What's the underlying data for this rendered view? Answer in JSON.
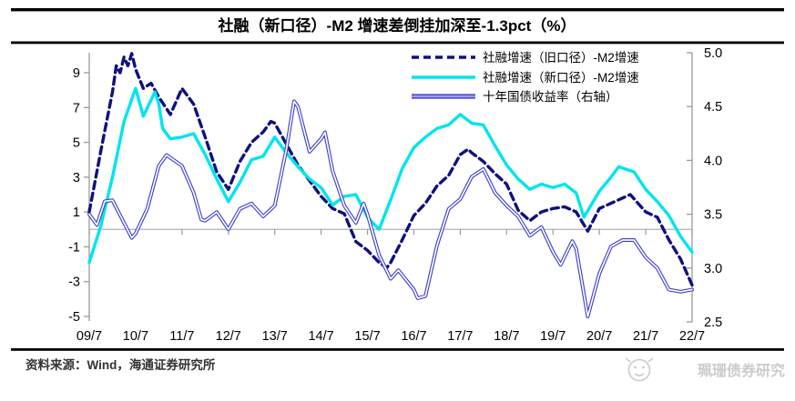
{
  "header": {
    "title": "社融（新口径）-M2 增速差倒挂加深至-1.3pct（%）"
  },
  "footer": {
    "source_label": "资料来源：Wind，海通证券研究所",
    "watermark": "珮珊债券研究"
  },
  "colors": {
    "accent_navy": "#10107e",
    "accent_cyan": "#00e4f0",
    "yield_outer": "#3b3bd0",
    "yield_inner": "#9a9af0",
    "rule_black": "#000000",
    "axis_gray": "#9a9a9a",
    "grid_gray": "#b3b3b3",
    "watermark_gray": "#cccccc"
  },
  "chart_data": {
    "type": "line",
    "title": "社融（新口径）-M2 增速差倒挂加深至-1.3pct（%）",
    "x_unit": "months_since_2009_07",
    "x_months_range": [
      0,
      156
    ],
    "x_tick_labels": [
      "09/7",
      "10/7",
      "11/7",
      "12/7",
      "13/7",
      "14/7",
      "15/7",
      "16/7",
      "17/7",
      "18/7",
      "19/7",
      "20/7",
      "21/7",
      "22/7"
    ],
    "left_axis": {
      "tick_labels": [
        "9",
        "7",
        "5",
        "3",
        "1",
        "-1",
        "-3",
        "-5"
      ],
      "min": -5,
      "max": 9,
      "zero_gridline": true
    },
    "right_axis": {
      "tick_labels": [
        "5.0",
        "4.5",
        "4.0",
        "3.5",
        "3.0",
        "2.5"
      ],
      "min": 2.5,
      "max": 5.0
    },
    "legend_position": "top-right",
    "grid": "zero-line-only",
    "series": [
      {
        "key": "old_tsf_m2",
        "name": "社融增速（旧口径）-M2增速",
        "axis": "left",
        "style": "dashed",
        "color": "#10107e",
        "points": [
          [
            0,
            1.0
          ],
          [
            3,
            4.5
          ],
          [
            6,
            7.9
          ],
          [
            7,
            9.4
          ],
          [
            8,
            9.0
          ],
          [
            9,
            9.9
          ],
          [
            10,
            9.4
          ],
          [
            11,
            10.1
          ],
          [
            12,
            9.2
          ],
          [
            14,
            8.1
          ],
          [
            16,
            8.4
          ],
          [
            18,
            7.6
          ],
          [
            21,
            6.6
          ],
          [
            24,
            8.1
          ],
          [
            27,
            7.2
          ],
          [
            30,
            5.3
          ],
          [
            33,
            3.3
          ],
          [
            36,
            2.3
          ],
          [
            39,
            3.9
          ],
          [
            42,
            5.0
          ],
          [
            45,
            5.6
          ],
          [
            47,
            6.2
          ],
          [
            48,
            6.1
          ],
          [
            51,
            4.9
          ],
          [
            54,
            3.7
          ],
          [
            57,
            2.8
          ],
          [
            60,
            1.9
          ],
          [
            63,
            1.2
          ],
          [
            66,
            0.9
          ],
          [
            69,
            -0.7
          ],
          [
            72,
            -1.2
          ],
          [
            75,
            -1.9
          ],
          [
            77,
            -2.2
          ],
          [
            78,
            -1.9
          ],
          [
            81,
            -0.6
          ],
          [
            84,
            0.8
          ],
          [
            87,
            1.5
          ],
          [
            90,
            2.5
          ],
          [
            93,
            3.1
          ],
          [
            96,
            4.3
          ],
          [
            98,
            4.6
          ],
          [
            99,
            4.4
          ],
          [
            102,
            3.9
          ],
          [
            105,
            3.2
          ],
          [
            108,
            2.6
          ],
          [
            111,
            1.1
          ],
          [
            114,
            0.5
          ],
          [
            117,
            1.0
          ],
          [
            120,
            1.2
          ],
          [
            123,
            1.3
          ],
          [
            126,
            1.0
          ],
          [
            129,
            -0.1
          ],
          [
            132,
            1.2
          ],
          [
            135,
            1.5
          ],
          [
            138,
            1.8
          ],
          [
            140,
            2.0
          ],
          [
            144,
            1.0
          ],
          [
            147,
            0.7
          ],
          [
            150,
            -0.6
          ],
          [
            153,
            -1.7
          ],
          [
            156,
            -3.2
          ]
        ]
      },
      {
        "key": "new_tsf_m2",
        "name": "社融增速（新口径）-M2增速",
        "axis": "left",
        "style": "solid",
        "color": "#00e4f0",
        "points": [
          [
            0,
            -1.9
          ],
          [
            3,
            0.2
          ],
          [
            6,
            3.0
          ],
          [
            9,
            6.2
          ],
          [
            12,
            8.1
          ],
          [
            14,
            6.5
          ],
          [
            17,
            7.9
          ],
          [
            18,
            7.2
          ],
          [
            19,
            5.8
          ],
          [
            21,
            5.2
          ],
          [
            24,
            5.3
          ],
          [
            27,
            5.5
          ],
          [
            30,
            4.3
          ],
          [
            33,
            2.9
          ],
          [
            36,
            1.6
          ],
          [
            39,
            2.7
          ],
          [
            42,
            4.0
          ],
          [
            45,
            4.2
          ],
          [
            48,
            5.3
          ],
          [
            51,
            4.4
          ],
          [
            54,
            3.6
          ],
          [
            57,
            2.9
          ],
          [
            60,
            2.4
          ],
          [
            63,
            1.4
          ],
          [
            66,
            1.9
          ],
          [
            69,
            2.0
          ],
          [
            72,
            0.7
          ],
          [
            75,
            0.0
          ],
          [
            78,
            1.7
          ],
          [
            81,
            3.5
          ],
          [
            84,
            4.7
          ],
          [
            87,
            5.3
          ],
          [
            90,
            5.8
          ],
          [
            93,
            6.0
          ],
          [
            96,
            6.6
          ],
          [
            99,
            6.1
          ],
          [
            102,
            6.0
          ],
          [
            105,
            4.8
          ],
          [
            108,
            3.7
          ],
          [
            111,
            2.9
          ],
          [
            114,
            2.3
          ],
          [
            117,
            2.6
          ],
          [
            120,
            2.4
          ],
          [
            123,
            2.6
          ],
          [
            126,
            2.1
          ],
          [
            128,
            0.7
          ],
          [
            132,
            2.2
          ],
          [
            135,
            3.0
          ],
          [
            137,
            3.6
          ],
          [
            141,
            3.3
          ],
          [
            144,
            2.3
          ],
          [
            147,
            1.6
          ],
          [
            150,
            0.8
          ],
          [
            153,
            -0.4
          ],
          [
            156,
            -1.3
          ]
        ]
      },
      {
        "key": "cgb_10y_yield",
        "name": "十年国债收益率（右轴）",
        "axis": "right",
        "style": "double",
        "color": "#3b3bd0",
        "points": [
          [
            0,
            3.5
          ],
          [
            2,
            3.4
          ],
          [
            4,
            3.62
          ],
          [
            6,
            3.63
          ],
          [
            9,
            3.42
          ],
          [
            11,
            3.28
          ],
          [
            12,
            3.32
          ],
          [
            15,
            3.55
          ],
          [
            18,
            3.95
          ],
          [
            20,
            4.05
          ],
          [
            24,
            3.95
          ],
          [
            27,
            3.7
          ],
          [
            29,
            3.45
          ],
          [
            30,
            3.44
          ],
          [
            33,
            3.52
          ],
          [
            36,
            3.36
          ],
          [
            39,
            3.55
          ],
          [
            42,
            3.6
          ],
          [
            45,
            3.48
          ],
          [
            48,
            3.58
          ],
          [
            51,
            4.1
          ],
          [
            53,
            4.55
          ],
          [
            54,
            4.5
          ],
          [
            57,
            4.08
          ],
          [
            60,
            4.2
          ],
          [
            61,
            4.26
          ],
          [
            63,
            3.9
          ],
          [
            66,
            3.58
          ],
          [
            69,
            3.42
          ],
          [
            71,
            3.6
          ],
          [
            72,
            3.5
          ],
          [
            75,
            3.12
          ],
          [
            78,
            2.9
          ],
          [
            80,
            2.98
          ],
          [
            84,
            2.8
          ],
          [
            85,
            2.72
          ],
          [
            87,
            2.74
          ],
          [
            90,
            3.21
          ],
          [
            93,
            3.55
          ],
          [
            96,
            3.64
          ],
          [
            99,
            3.85
          ],
          [
            102,
            3.92
          ],
          [
            105,
            3.7
          ],
          [
            108,
            3.58
          ],
          [
            111,
            3.48
          ],
          [
            114,
            3.3
          ],
          [
            117,
            3.38
          ],
          [
            120,
            3.15
          ],
          [
            122,
            3.03
          ],
          [
            125,
            3.25
          ],
          [
            126,
            3.18
          ],
          [
            129,
            2.55
          ],
          [
            132,
            2.95
          ],
          [
            135,
            3.2
          ],
          [
            138,
            3.26
          ],
          [
            141,
            3.26
          ],
          [
            144,
            3.1
          ],
          [
            147,
            3.0
          ],
          [
            150,
            2.8
          ],
          [
            153,
            2.78
          ],
          [
            156,
            2.8
          ]
        ]
      }
    ]
  }
}
